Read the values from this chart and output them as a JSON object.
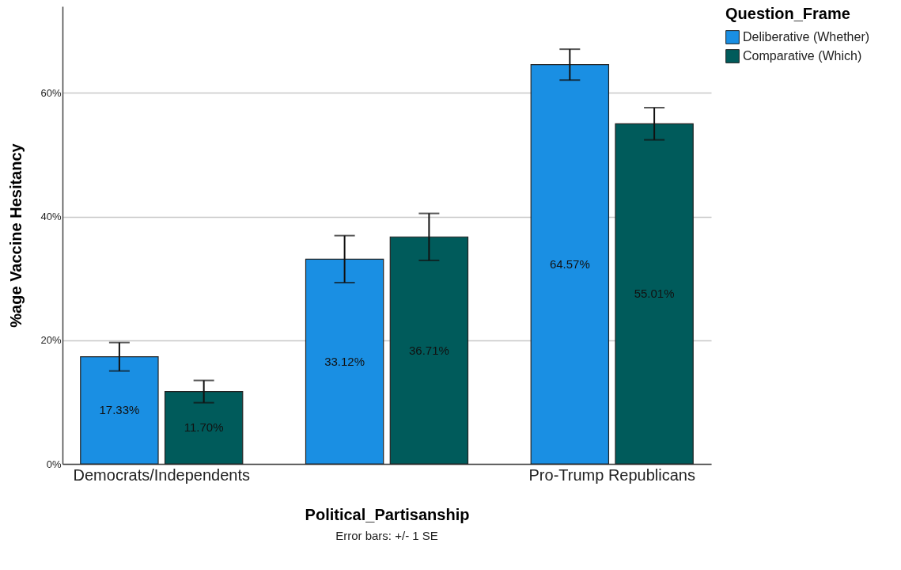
{
  "chart_data": {
    "type": "bar",
    "xlabel": "Political_Partisanship",
    "ylabel": "%age Vaccine Hesitancy",
    "legend_title": "Question_Frame",
    "categories": [
      "Democrats/Independents",
      null,
      "Pro-Trump Republicans"
    ],
    "series": [
      {
        "name": "Deliberative (Whether)",
        "color": "#1a8fe3",
        "values": [
          17.33,
          33.12,
          64.57
        ],
        "errors": [
          2.3,
          3.8,
          2.5
        ],
        "value_labels": [
          "17.33%",
          "33.12%",
          "64.57%"
        ]
      },
      {
        "name": "Comparative (Which)",
        "color": "#005b5b",
        "values": [
          11.7,
          36.71,
          55.01
        ],
        "errors": [
          1.8,
          3.8,
          2.6
        ],
        "value_labels": [
          "11.70%",
          "36.71%",
          "55.01%"
        ]
      }
    ],
    "ylim": [
      0,
      74
    ],
    "yticks": [
      {
        "value": 0,
        "label": "0%"
      },
      {
        "value": 20,
        "label": "20%"
      },
      {
        "value": 40,
        "label": "40%"
      },
      {
        "value": 60,
        "label": "60%"
      }
    ],
    "grid": "y",
    "legend": "top right",
    "annotations": [
      "Error bars: +/- 1 SE"
    ]
  }
}
